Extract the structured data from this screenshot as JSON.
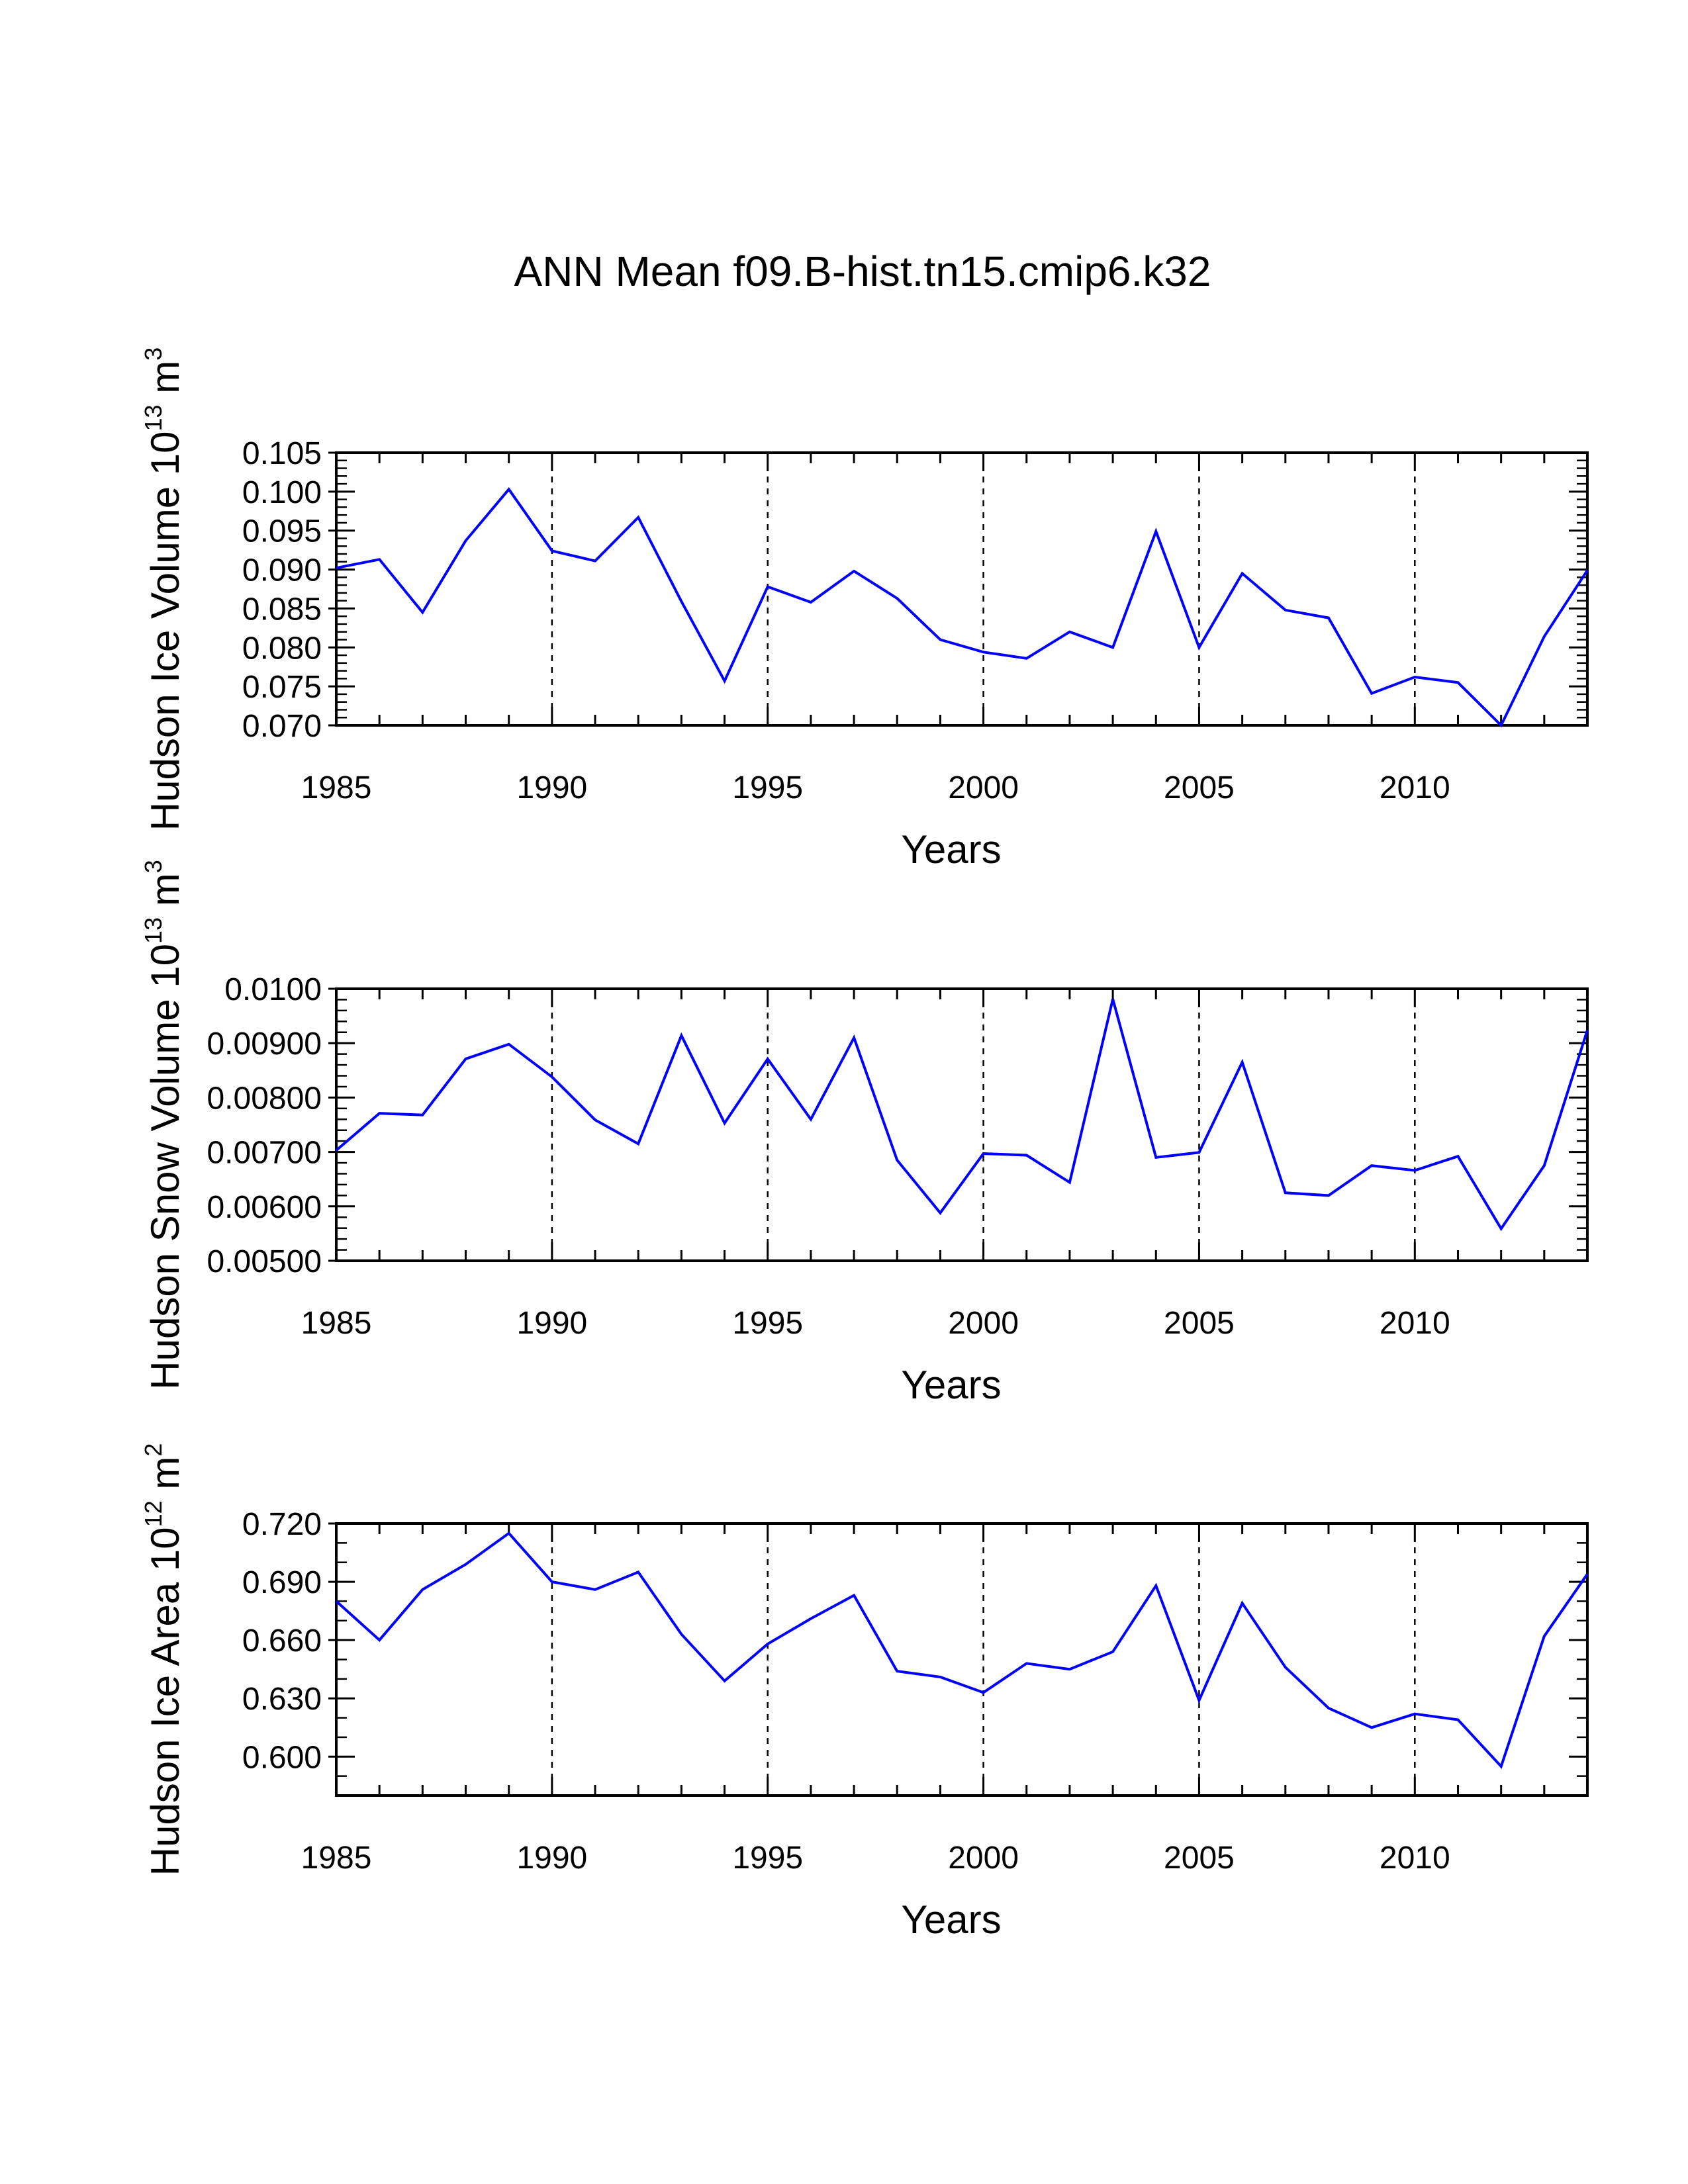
{
  "figure": {
    "title": "ANN Mean f09.B-hist.tn15.cmip6.k32",
    "line_color": "#0000ff"
  },
  "chart_data": [
    {
      "type": "line",
      "xlabel": "Years",
      "ylabel": {
        "text": "Hudson Ice Volume 10",
        "exponent": "13",
        "unit": "m",
        "unit_exponent": "3"
      },
      "xlim": [
        1985,
        2014
      ],
      "ylim": [
        0.07,
        0.105
      ],
      "x_ticks": [
        1985,
        1990,
        1995,
        2000,
        2005,
        2010
      ],
      "x_tick_labels": [
        "1985",
        "1990",
        "1995",
        "2000",
        "2005",
        "2010"
      ],
      "y_ticks": [
        0.07,
        0.075,
        0.08,
        0.085,
        0.09,
        0.095,
        0.1,
        0.105
      ],
      "y_tick_labels": [
        "0.070",
        "0.075",
        "0.080",
        "0.085",
        "0.090",
        "0.095",
        "0.100",
        "0.105"
      ],
      "y_minor_step": 0.001,
      "gridlines_x": [
        1990,
        1995,
        2000,
        2005,
        2010
      ],
      "series": [
        {
          "name": "Hudson Ice Volume",
          "x": [
            1985,
            1986,
            1987,
            1988,
            1989,
            1990,
            1991,
            1992,
            1993,
            1994,
            1995,
            1996,
            1997,
            1998,
            1999,
            2000,
            2001,
            2002,
            2003,
            2004,
            2005,
            2006,
            2007,
            2008,
            2009,
            2010,
            2011,
            2012,
            2013,
            2014
          ],
          "values": [
            0.0902,
            0.0913,
            0.0845,
            0.0937,
            0.1003,
            0.0924,
            0.0911,
            0.0967,
            0.0859,
            0.0757,
            0.0878,
            0.0858,
            0.0898,
            0.0863,
            0.081,
            0.0794,
            0.0786,
            0.082,
            0.08,
            0.0949,
            0.08,
            0.0895,
            0.0848,
            0.0838,
            0.0741,
            0.0762,
            0.0755,
            0.07,
            0.0814,
            0.0899
          ]
        }
      ]
    },
    {
      "type": "line",
      "xlabel": "Years",
      "ylabel": {
        "text": "Hudson Snow Volume 10",
        "exponent": "13",
        "unit": "m",
        "unit_exponent": "3"
      },
      "xlim": [
        1985,
        2014
      ],
      "ylim": [
        0.005,
        0.01
      ],
      "x_ticks": [
        1985,
        1990,
        1995,
        2000,
        2005,
        2010
      ],
      "x_tick_labels": [
        "1985",
        "1990",
        "1995",
        "2000",
        "2005",
        "2010"
      ],
      "y_ticks": [
        0.005,
        0.006,
        0.007,
        0.008,
        0.009,
        0.01
      ],
      "y_tick_labels": [
        "0.00500",
        "0.00600",
        "0.00700",
        "0.00800",
        "0.00900",
        "0.0100"
      ],
      "y_minor_step": 0.0002,
      "gridlines_x": [
        1990,
        1995,
        2000,
        2005,
        2010
      ],
      "series": [
        {
          "name": "Hudson Snow Volume",
          "x": [
            1985,
            1986,
            1987,
            1988,
            1989,
            1990,
            1991,
            1992,
            1993,
            1994,
            1995,
            1996,
            1997,
            1998,
            1999,
            2000,
            2001,
            2002,
            2003,
            2004,
            2005,
            2006,
            2007,
            2008,
            2009,
            2010,
            2011,
            2012,
            2013,
            2014
          ],
          "values": [
            0.00703,
            0.00771,
            0.00768,
            0.00871,
            0.00898,
            0.00838,
            0.00759,
            0.00715,
            0.00914,
            0.00753,
            0.00871,
            0.0076,
            0.0091,
            0.00685,
            0.00588,
            0.00697,
            0.00694,
            0.00644,
            0.00981,
            0.0069,
            0.00699,
            0.00865,
            0.00625,
            0.0062,
            0.00675,
            0.00666,
            0.00692,
            0.00559,
            0.00675,
            0.00924
          ]
        }
      ]
    },
    {
      "type": "line",
      "xlabel": "Years",
      "ylabel": {
        "text": "Hudson Ice Area 10",
        "exponent": "12",
        "unit": "m",
        "unit_exponent": "2"
      },
      "xlim": [
        1985,
        2014
      ],
      "ylim": [
        0.58,
        0.72
      ],
      "x_ticks": [
        1985,
        1990,
        1995,
        2000,
        2005,
        2010
      ],
      "x_tick_labels": [
        "1985",
        "1990",
        "1995",
        "2000",
        "2005",
        "2010"
      ],
      "y_ticks": [
        0.6,
        0.63,
        0.66,
        0.69,
        0.72
      ],
      "y_tick_labels": [
        "0.600",
        "0.630",
        "0.660",
        "0.690",
        "0.720"
      ],
      "y_minor_step": 0.01,
      "gridlines_x": [
        1990,
        1995,
        2000,
        2005,
        2010
      ],
      "series": [
        {
          "name": "Hudson Ice Area",
          "x": [
            1985,
            1986,
            1987,
            1988,
            1989,
            1990,
            1991,
            1992,
            1993,
            1994,
            1995,
            1996,
            1997,
            1998,
            1999,
            2000,
            2001,
            2002,
            2003,
            2004,
            2005,
            2006,
            2007,
            2008,
            2009,
            2010,
            2011,
            2012,
            2013,
            2014
          ],
          "values": [
            0.68,
            0.66,
            0.686,
            0.699,
            0.715,
            0.69,
            0.686,
            0.695,
            0.663,
            0.639,
            0.658,
            0.671,
            0.683,
            0.644,
            0.641,
            0.633,
            0.648,
            0.645,
            0.654,
            0.688,
            0.629,
            0.679,
            0.646,
            0.625,
            0.615,
            0.622,
            0.619,
            0.595,
            0.662,
            0.694
          ]
        }
      ]
    }
  ]
}
